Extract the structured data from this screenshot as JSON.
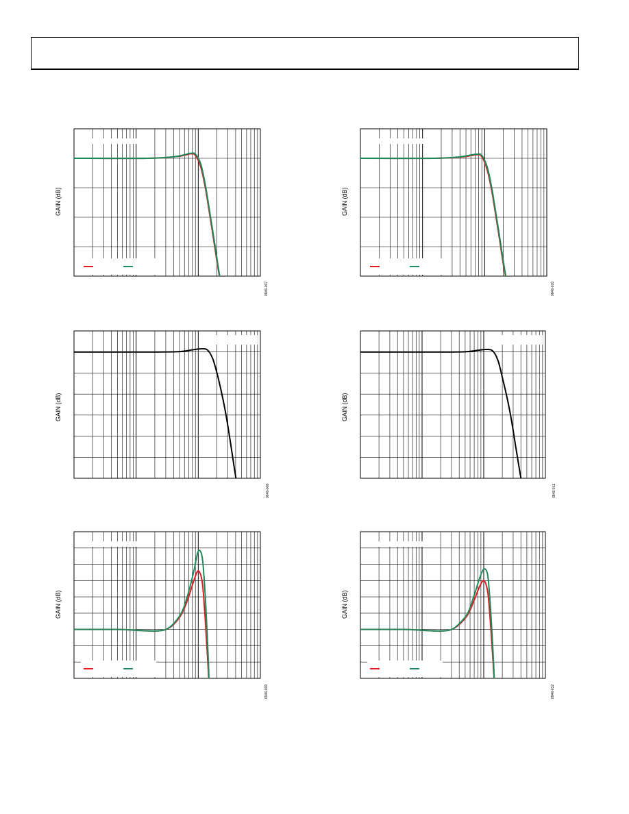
{
  "colors": {
    "red": "#e11b22",
    "green": "#1d8a5c",
    "black": "#000000",
    "grid": "#000000"
  },
  "chart_data": [
    {
      "id": "chart-1",
      "type": "line",
      "ylabel": "GAIN (dB)",
      "fig_id": "0946-007",
      "x_log": true,
      "xlim": [
        1,
        1000
      ],
      "ylim": [
        -4,
        1
      ],
      "y_grid_lines": 5,
      "legend": "bottom-left",
      "series": [
        {
          "color_key": "red",
          "x": [
            1,
            15,
            40,
            60,
            75,
            90,
            110,
            130,
            150,
            175,
            200,
            240
          ],
          "y": [
            0,
            0,
            0.05,
            0.1,
            0.15,
            0.1,
            -0.3,
            -1.0,
            -1.8,
            -2.7,
            -3.5,
            -4.5
          ]
        },
        {
          "color_key": "green",
          "x": [
            1,
            15,
            40,
            60,
            75,
            90,
            110,
            130,
            150,
            175,
            200,
            240
          ],
          "y": [
            0,
            0,
            0.05,
            0.12,
            0.17,
            0.14,
            -0.2,
            -0.9,
            -1.7,
            -2.6,
            -3.4,
            -4.5
          ]
        }
      ]
    },
    {
      "id": "chart-2",
      "type": "line",
      "ylabel": "GAIN (dB)",
      "fig_id": "0946-010",
      "x_log": true,
      "xlim": [
        1,
        1000
      ],
      "ylim": [
        -4,
        1
      ],
      "y_grid_lines": 5,
      "legend": "bottom-left",
      "series": [
        {
          "color_key": "red",
          "x": [
            1,
            15,
            40,
            60,
            75,
            90,
            110,
            130,
            150,
            175,
            200,
            240
          ],
          "y": [
            0,
            0,
            0.04,
            0.09,
            0.12,
            0.06,
            -0.4,
            -1.1,
            -1.9,
            -2.8,
            -3.6,
            -4.5
          ]
        },
        {
          "color_key": "green",
          "x": [
            1,
            15,
            40,
            60,
            75,
            90,
            110,
            130,
            150,
            175,
            200,
            240
          ],
          "y": [
            0,
            0,
            0.05,
            0.11,
            0.14,
            0.1,
            -0.3,
            -1.0,
            -1.8,
            -2.7,
            -3.5,
            -4.5
          ]
        }
      ]
    },
    {
      "id": "chart-3",
      "type": "line",
      "ylabel": "GAIN (dB)",
      "fig_id": "0946-008",
      "x_log": true,
      "xlim": [
        1,
        1000
      ],
      "ylim": [
        -6,
        1
      ],
      "y_grid_lines": 7,
      "legend": "top-right",
      "series": [
        {
          "color_key": "black",
          "x": [
            1,
            20,
            50,
            80,
            110,
            140,
            170,
            200,
            240,
            280,
            330,
            380,
            430
          ],
          "y": [
            0,
            0,
            0.02,
            0.1,
            0.15,
            0.1,
            -0.3,
            -1.0,
            -2.0,
            -3.0,
            -4.3,
            -5.5,
            -6.5
          ]
        }
      ]
    },
    {
      "id": "chart-4",
      "type": "line",
      "ylabel": "GAIN (dB)",
      "fig_id": "0946-011",
      "x_log": true,
      "xlim": [
        1,
        1000
      ],
      "ylim": [
        -6,
        1
      ],
      "y_grid_lines": 7,
      "legend": "top-right",
      "series": [
        {
          "color_key": "black",
          "x": [
            1,
            20,
            50,
            80,
            110,
            140,
            170,
            200,
            240,
            280,
            330,
            380,
            430
          ],
          "y": [
            0,
            0,
            0.01,
            0.08,
            0.12,
            0.05,
            -0.4,
            -1.2,
            -2.2,
            -3.2,
            -4.5,
            -5.6,
            -6.5
          ]
        }
      ]
    },
    {
      "id": "chart-5",
      "type": "line",
      "ylabel": "GAIN (dB)",
      "fig_id": "0946-009",
      "x_log": true,
      "xlim": [
        1,
        1000
      ],
      "ylim": [
        -3,
        6
      ],
      "y_grid_lines": 9,
      "legend": "bottom-left",
      "series": [
        {
          "color_key": "red",
          "x": [
            1,
            5,
            10,
            20,
            30,
            40,
            55,
            70,
            85,
            100,
            115,
            125,
            135,
            145,
            150
          ],
          "y": [
            0,
            0,
            -0.05,
            -0.1,
            0,
            0.3,
            1.0,
            2.0,
            3.0,
            3.6,
            3.0,
            1.5,
            -0.5,
            -2.5,
            -3.5
          ]
        },
        {
          "color_key": "green",
          "x": [
            1,
            5,
            10,
            20,
            30,
            40,
            55,
            70,
            85,
            100,
            115,
            125,
            135,
            145,
            150
          ],
          "y": [
            0,
            0,
            -0.05,
            -0.1,
            0,
            0.35,
            1.1,
            2.3,
            3.6,
            4.8,
            4.5,
            3.0,
            0.8,
            -1.8,
            -3.5
          ]
        }
      ]
    },
    {
      "id": "chart-6",
      "type": "line",
      "ylabel": "GAIN (dB)",
      "fig_id": "0946-012",
      "x_log": true,
      "xlim": [
        1,
        1000
      ],
      "ylim": [
        -3,
        6
      ],
      "y_grid_lines": 9,
      "legend": "bottom-left",
      "series": [
        {
          "color_key": "red",
          "x": [
            1,
            5,
            10,
            20,
            30,
            40,
            55,
            70,
            85,
            100,
            115,
            125,
            135,
            145,
            150
          ],
          "y": [
            0,
            0,
            -0.05,
            -0.1,
            0,
            0.3,
            0.9,
            1.8,
            2.6,
            3.0,
            2.4,
            1.0,
            -0.8,
            -2.6,
            -3.5
          ]
        },
        {
          "color_key": "green",
          "x": [
            1,
            5,
            10,
            20,
            30,
            40,
            55,
            70,
            85,
            100,
            115,
            125,
            135,
            145,
            150
          ],
          "y": [
            0,
            0,
            -0.05,
            -0.1,
            0,
            0.35,
            1.0,
            2.1,
            3.1,
            3.7,
            3.4,
            2.0,
            0.0,
            -2.2,
            -3.5
          ]
        }
      ]
    }
  ]
}
